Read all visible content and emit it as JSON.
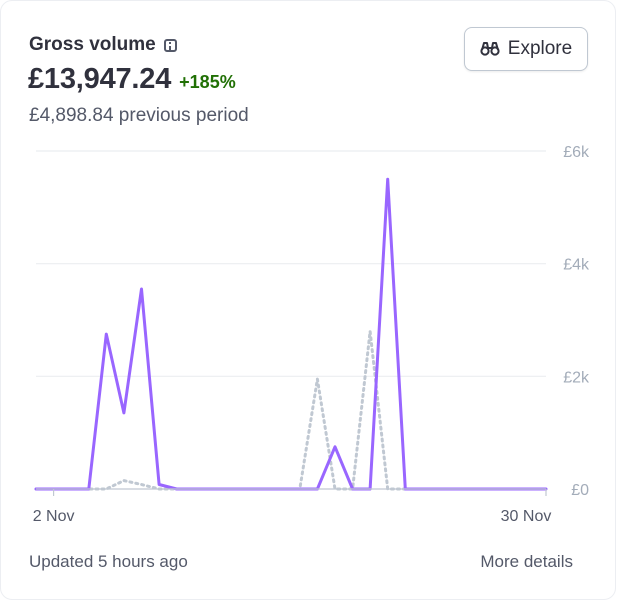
{
  "header": {
    "title": "Gross volume",
    "value": "£13,947.24",
    "change": "+185%",
    "previous": "£4,898.84 previous period",
    "explore_label": "Explore"
  },
  "footer": {
    "updated": "Updated 5 hours ago",
    "more": "More details"
  },
  "colors": {
    "current": "#9966ff",
    "previous": "#c0c8d2",
    "grid": "#ebeef1",
    "tick": "#a3acb9",
    "positive": "#217005"
  },
  "icons": {
    "info": "info-icon",
    "explore": "binoculars-icon"
  },
  "chart_data": {
    "type": "line",
    "x_tick_labels": [
      "2 Nov",
      "30 Nov"
    ],
    "y_tick_labels": [
      "£0",
      "£2k",
      "£4k",
      "£6k"
    ],
    "ylim": [
      0,
      6000
    ],
    "grid": true,
    "series": [
      {
        "style": "solid",
        "values": [
          0,
          0,
          0,
          0,
          2750,
          1350,
          3550,
          80,
          0,
          0,
          0,
          0,
          0,
          0,
          0,
          0,
          0,
          750,
          0,
          0,
          5500,
          0,
          0,
          0,
          0,
          0,
          0,
          0,
          0,
          0
        ]
      },
      {
        "style": "dotted",
        "values": [
          0,
          0,
          0,
          0,
          0,
          150,
          80,
          0,
          0,
          0,
          0,
          0,
          0,
          0,
          0,
          0,
          1950,
          0,
          0,
          2800,
          0,
          0,
          0,
          0,
          0,
          0,
          0,
          0,
          0,
          0
        ]
      }
    ]
  }
}
